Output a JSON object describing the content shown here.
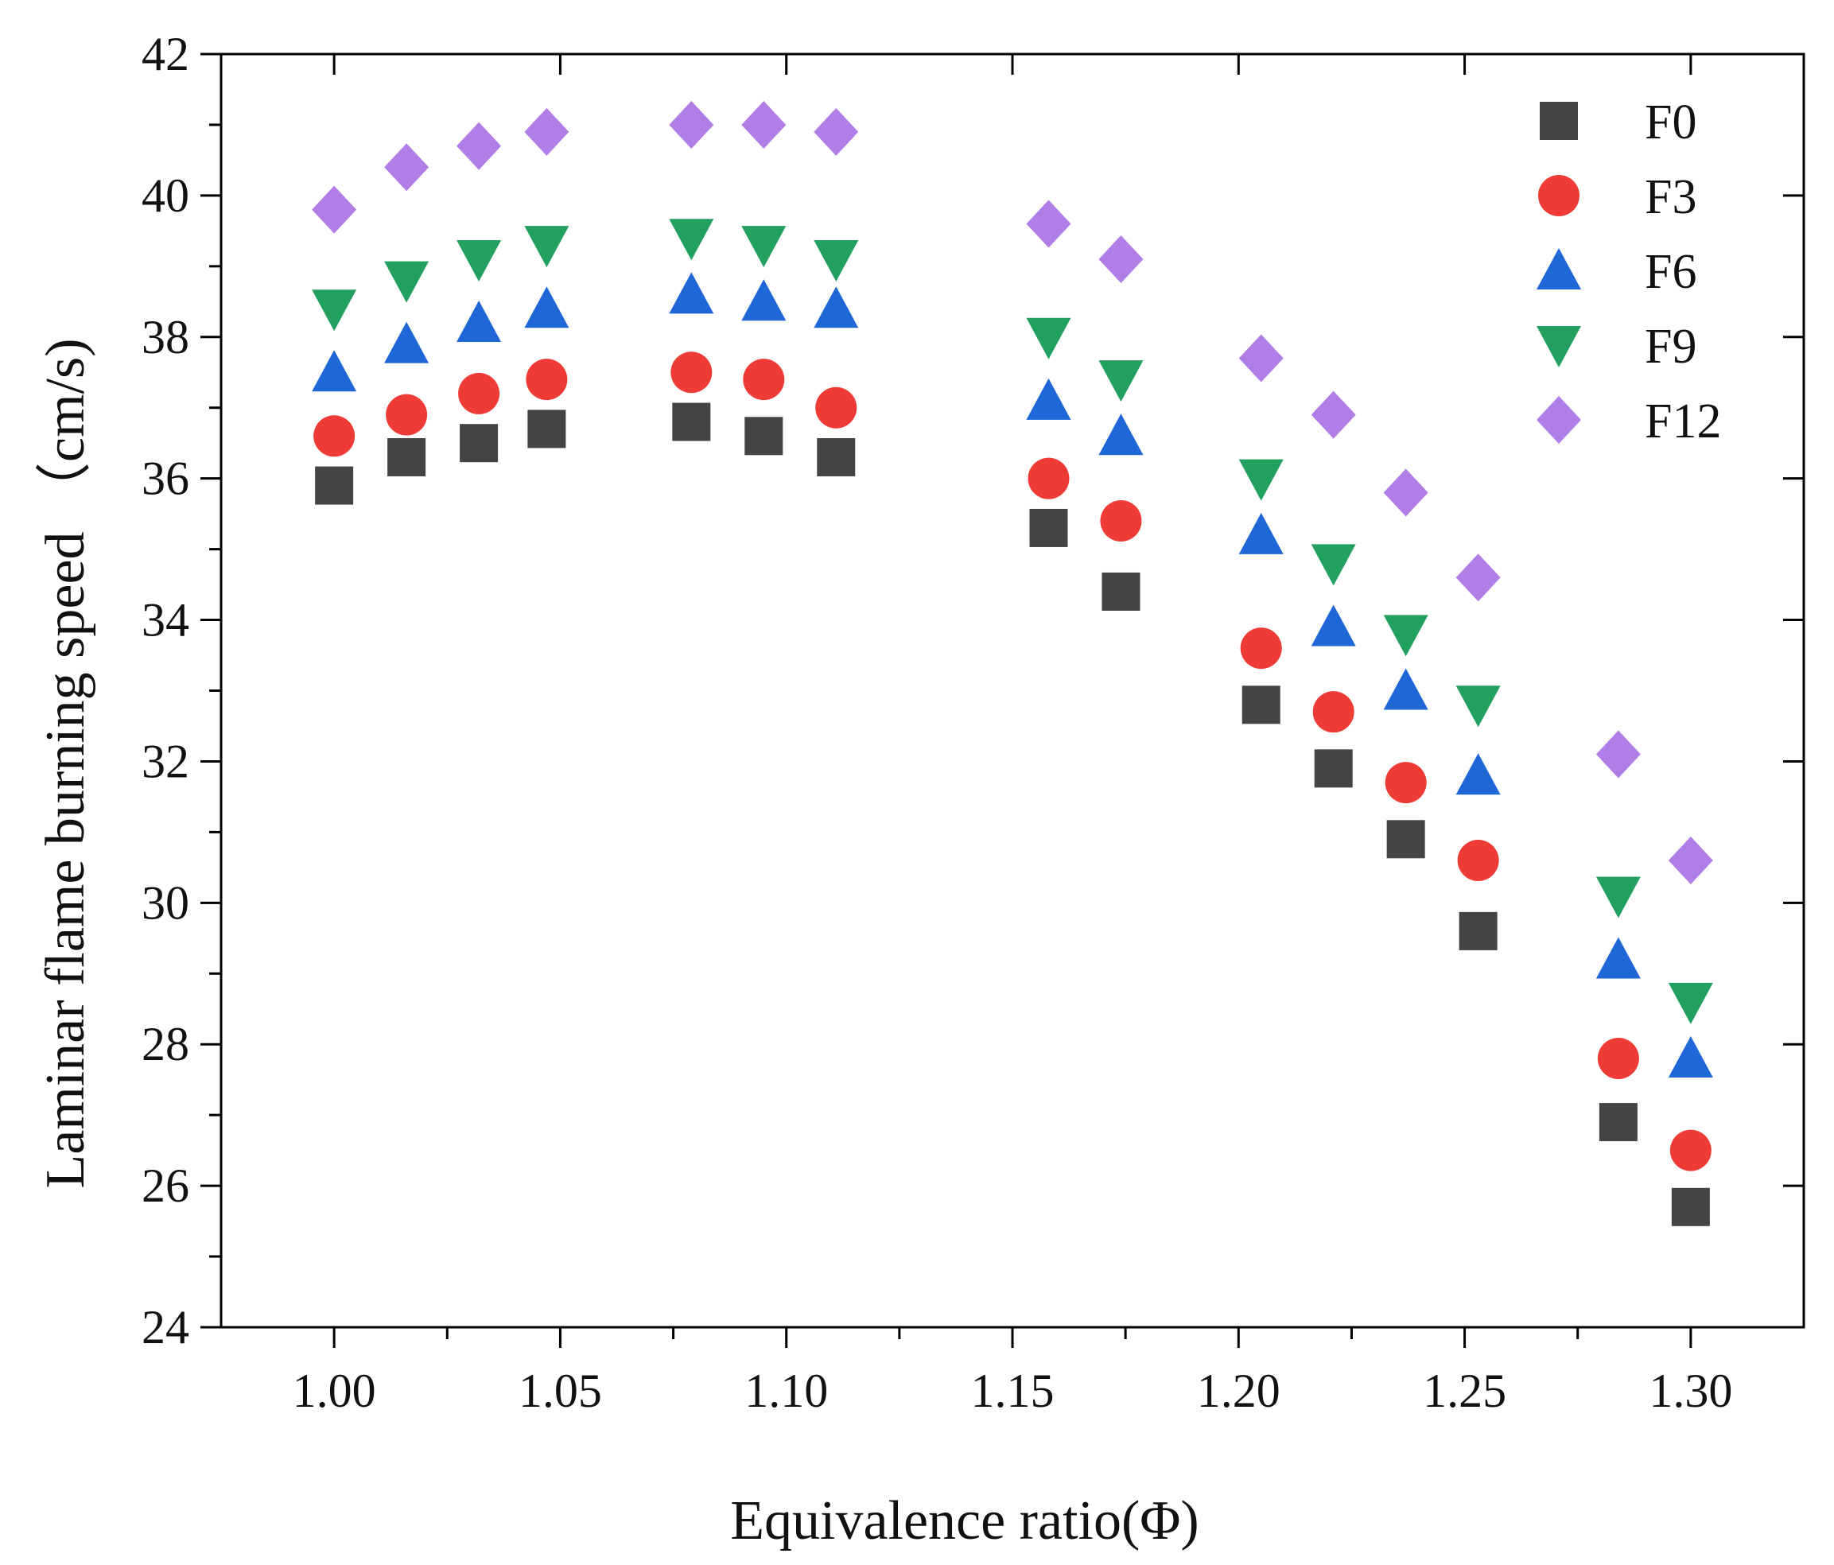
{
  "chart_data": {
    "type": "scatter",
    "xlabel": "Equivalence ratio(Φ)",
    "ylabel": "Laminar flame burning speed （cm/s)",
    "xlim": [
      0.975,
      1.325
    ],
    "ylim": [
      24,
      42
    ],
    "x_ticks": [
      "1.00",
      "1.05",
      "1.10",
      "1.15",
      "1.20",
      "1.25",
      "1.30"
    ],
    "y_ticks": [
      "24",
      "26",
      "28",
      "30",
      "32",
      "34",
      "36",
      "38",
      "40",
      "42"
    ],
    "legend_position": "top-right",
    "x": [
      1.0,
      1.016,
      1.032,
      1.047,
      1.079,
      1.095,
      1.111,
      1.158,
      1.174,
      1.205,
      1.221,
      1.237,
      1.253,
      1.284,
      1.3
    ],
    "series": [
      {
        "name": "F0",
        "marker": "square",
        "color": "#444444",
        "values": [
          35.9,
          36.3,
          36.5,
          36.7,
          36.8,
          36.6,
          36.3,
          35.3,
          34.4,
          32.8,
          31.9,
          30.9,
          29.6,
          26.9,
          25.7
        ]
      },
      {
        "name": "F3",
        "marker": "circle",
        "color": "#ef3b36",
        "values": [
          36.6,
          36.9,
          37.2,
          37.4,
          37.5,
          37.4,
          37.0,
          36.0,
          35.4,
          33.6,
          32.7,
          31.7,
          30.6,
          27.8,
          26.5
        ]
      },
      {
        "name": "F6",
        "marker": "triangle-up",
        "color": "#1f66d6",
        "values": [
          37.5,
          37.9,
          38.2,
          38.4,
          38.6,
          38.5,
          38.4,
          37.1,
          36.6,
          35.2,
          33.9,
          33.0,
          31.8,
          29.2,
          27.8
        ]
      },
      {
        "name": "F9",
        "marker": "triangle-down",
        "color": "#22a060",
        "values": [
          38.4,
          38.8,
          39.1,
          39.3,
          39.4,
          39.3,
          39.1,
          38.0,
          37.4,
          36.0,
          34.8,
          33.8,
          32.8,
          30.1,
          28.6
        ]
      },
      {
        "name": "F12",
        "marker": "diamond",
        "color": "#b07ee6",
        "values": [
          39.8,
          40.4,
          40.7,
          40.9,
          41.0,
          41.0,
          40.9,
          39.6,
          39.1,
          37.7,
          36.9,
          35.8,
          34.6,
          32.1,
          30.6
        ]
      }
    ]
  }
}
